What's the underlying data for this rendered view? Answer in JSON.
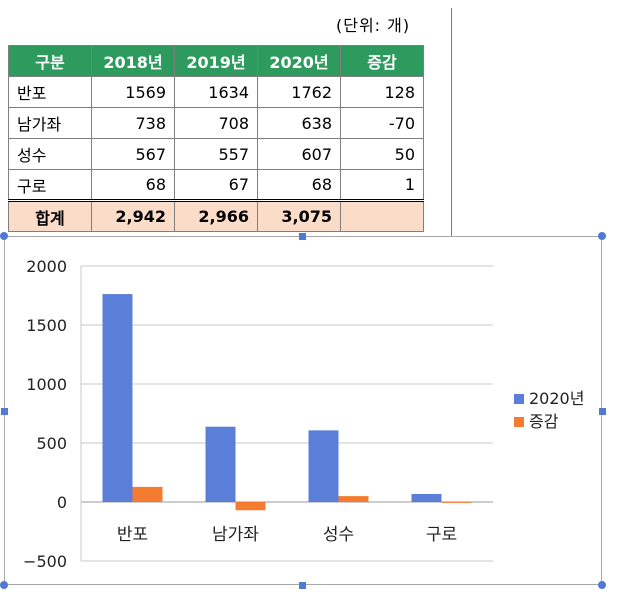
{
  "unit_label": "(단위: 개)",
  "table": {
    "headers": [
      "구분",
      "2018년",
      "2019년",
      "2020년",
      "증감"
    ],
    "rows": [
      [
        "반포",
        "1569",
        "1634",
        "1762",
        "128"
      ],
      [
        "남가좌",
        "738",
        "708",
        "638",
        "-70"
      ],
      [
        "성수",
        "567",
        "557",
        "607",
        "50"
      ],
      [
        "구로",
        "68",
        "67",
        "68",
        "1"
      ]
    ],
    "total": [
      "합계",
      "2,942",
      "2,966",
      "3,075",
      ""
    ]
  },
  "colors": {
    "header_bg": "#2e9b5e",
    "total_bg": "#fbdcc8",
    "series_2020": "#5b7fd9",
    "series_change": "#f47b30",
    "selection_handle": "#4f7bd6"
  },
  "chart_data": {
    "type": "bar",
    "categories": [
      "반포",
      "남가좌",
      "성수",
      "구로"
    ],
    "series": [
      {
        "name": "2020년",
        "values": [
          1762,
          638,
          607,
          68
        ]
      },
      {
        "name": "증감",
        "values": [
          128,
          -70,
          50,
          1
        ]
      }
    ],
    "ylim": [
      -500,
      2000
    ],
    "yticks": [
      2000,
      1500,
      1000,
      500,
      0,
      -500
    ],
    "ytick_labels": [
      "2000",
      "1500",
      "1000",
      "500",
      "0",
      "−500"
    ],
    "grid": true,
    "legend_position": "right"
  }
}
